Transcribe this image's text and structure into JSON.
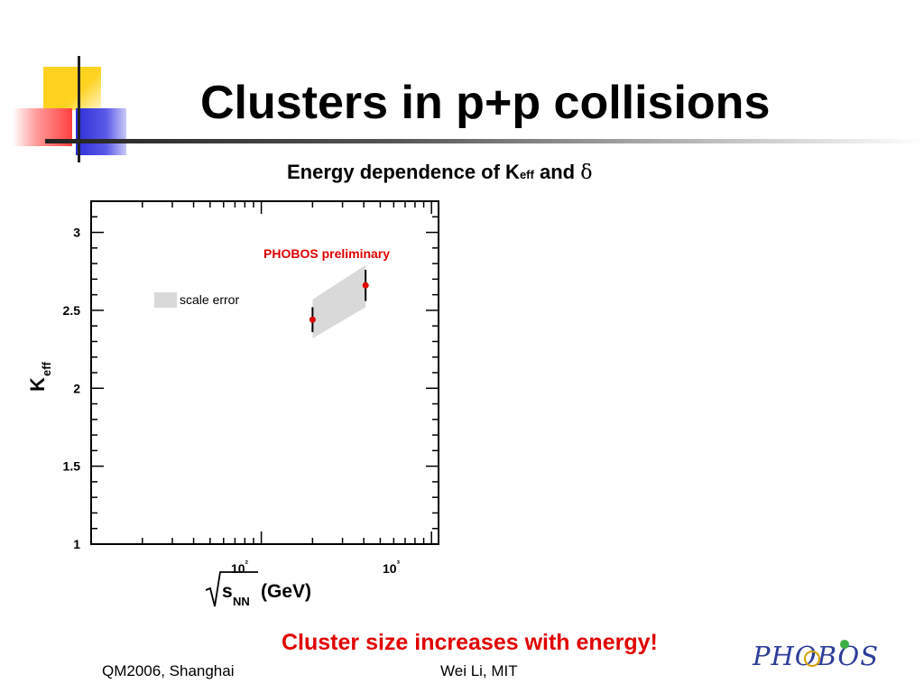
{
  "slide": {
    "title": "Clusters in p+p collisions",
    "subtitle_prefix": "Energy dependence of K",
    "subtitle_sub": "eff",
    "subtitle_mid": " and ",
    "subtitle_symbol": "δ",
    "conclusion": "Cluster size increases with energy!",
    "footer_left": "QM2006, Shanghai",
    "footer_center": "Wei Li, MIT",
    "logo_text": "PHOBOS"
  },
  "colors": {
    "accent_red": "#e00000",
    "deco_yellow": "#ffd21f",
    "deco_blue": "#3c3cdc",
    "deco_red": "#ff5a5a",
    "band_gray": "#d9d9d9"
  },
  "chart_data": {
    "type": "scatter",
    "x_scale": "log",
    "xlim": [
      10,
      1100
    ],
    "ylim": [
      1,
      3.2
    ],
    "xlabel": "√s_NN (GeV)",
    "ylabel": "K_eff",
    "x_tick_labels": [
      "10²",
      "10³"
    ],
    "y_ticks": [
      1,
      1.5,
      2,
      2.5,
      3
    ],
    "y_tick_labels": [
      "1",
      "1.5",
      "2",
      "2.5",
      "3"
    ],
    "grid": false,
    "annotation": "PHOBOS preliminary",
    "legend": "scale error",
    "legend_placement": "top-left",
    "series": [
      {
        "x": [
          200,
          410
        ],
        "y": [
          2.44,
          2.66
        ],
        "err": [
          0.08,
          0.1
        ],
        "scale_error_low": [
          2.32,
          2.52
        ],
        "scale_error_high": [
          2.57,
          2.79
        ]
      }
    ]
  }
}
